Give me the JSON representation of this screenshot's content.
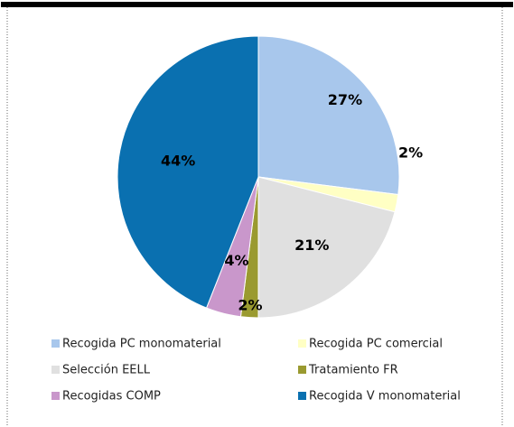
{
  "chart_data": {
    "type": "pie",
    "categories": [
      "Recogida PC monomaterial",
      "Recogida PC comercial",
      "Selección EELL",
      "Tratamiento FR",
      "Recogidas COMP",
      "Recogida V monomaterial"
    ],
    "values": [
      27,
      2,
      21,
      2,
      4,
      44
    ],
    "value_labels": [
      "27%",
      "2%",
      "21%",
      "2%",
      "4%",
      "44%"
    ],
    "colors": [
      "#a8c7ec",
      "#ffffc4",
      "#e0e0e0",
      "#9a9a30",
      "#c997cb",
      "#0a70b0"
    ],
    "legend": "bottom"
  }
}
